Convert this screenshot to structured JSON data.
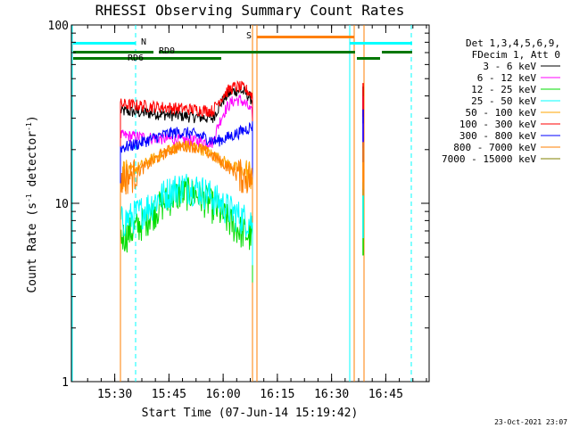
{
  "chart_data": {
    "type": "line",
    "title": "RHESSI Observing Summary Count Rates",
    "xlabel": "Start Time (07-Jun-14 15:19:42)",
    "ylabel_prefix": "Count Rate (s",
    "ylabel_exp1": "-1",
    "ylabel_mid": " detector",
    "ylabel_exp2": "-1",
    "ylabel_suffix": ")",
    "y_scale": "log",
    "ylim": [
      1,
      100
    ],
    "xlim_minutes": [
      15.3,
      16.95
    ],
    "x_ticks": [
      {
        "label": "15:30",
        "value": 15.5
      },
      {
        "label": "15:45",
        "value": 15.75
      },
      {
        "label": "16:00",
        "value": 16.0
      },
      {
        "label": "16:15",
        "value": 16.25
      },
      {
        "label": "16:30",
        "value": 16.5
      },
      {
        "label": "16:45",
        "value": 16.75
      }
    ],
    "y_ticks": [
      {
        "label": "1",
        "value": 1
      },
      {
        "label": "10",
        "value": 10
      },
      {
        "label": "100",
        "value": 100
      }
    ],
    "legend": {
      "header": [
        "Det 1,3,4,5,6,9,",
        "FDecim 1, Att 0"
      ],
      "placement": "right"
    },
    "series": [
      {
        "name": "3 - 6 keV",
        "color": "#000000",
        "base": 33,
        "dip": 30,
        "rise": 43
      },
      {
        "name": "6 - 12 keV",
        "color": "#ff00ff",
        "base": 24,
        "dip": 22,
        "rise": 38
      },
      {
        "name": "12 - 25 keV",
        "color": "#00dd00",
        "base": 6.0,
        "peak": 11.5
      },
      {
        "name": "25 - 50 keV",
        "color": "#00ffff",
        "base": 7.5,
        "peak": 12.5
      },
      {
        "name": "50 - 100 keV",
        "color": "#ffa500",
        "base": 14,
        "peak": 21
      },
      {
        "name": "100 - 300 keV",
        "color": "#ff0000",
        "base": 36,
        "dip": 33,
        "rise": 45
      },
      {
        "name": "300 - 800 keV",
        "color": "#0000ff",
        "base": 20,
        "peak": 25,
        "rise": 32
      },
      {
        "name": "800 - 7000 keV",
        "color": "#ff7f00",
        "base": 13,
        "peak": 21
      },
      {
        "name": "7000 - 15000 keV",
        "color": "#808000"
      }
    ],
    "annotations": {
      "N": "N",
      "S": "S",
      "RD0": "RD0",
      "RD6": "RD6"
    },
    "datestamp": "23-Oct-2021 23:07"
  }
}
